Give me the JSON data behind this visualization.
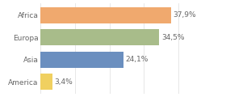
{
  "categories": [
    "Africa",
    "Europa",
    "Asia",
    "America"
  ],
  "values": [
    37.9,
    34.5,
    24.1,
    3.4
  ],
  "labels": [
    "37,9%",
    "34,5%",
    "24,1%",
    "3,4%"
  ],
  "bar_colors": [
    "#f0a96e",
    "#a8bc8a",
    "#6b8fbf",
    "#f0d060"
  ],
  "background_color": "#ffffff",
  "xlim": [
    0,
    46
  ],
  "label_fontsize": 6.5,
  "tick_fontsize": 6.5,
  "bar_height": 0.72,
  "grid_color": "#dddddd",
  "grid_lw": 0.5,
  "text_color": "#666666"
}
